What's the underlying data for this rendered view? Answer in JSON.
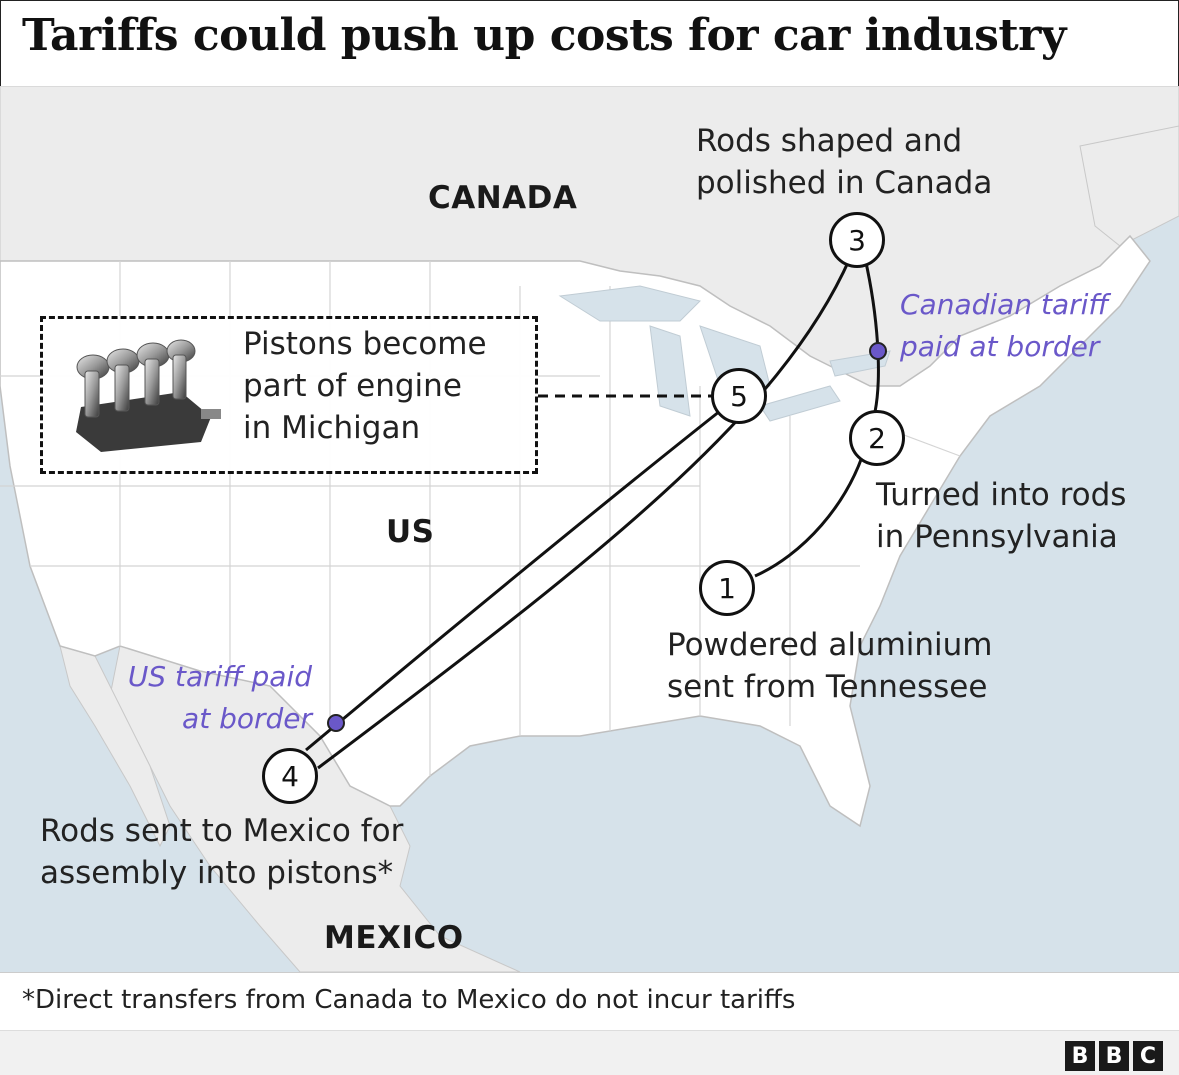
{
  "title": "Tariffs could push up costs for car industry",
  "countries": {
    "canada": "CANADA",
    "us": "US",
    "mexico": "MEXICO"
  },
  "steps": [
    {
      "num": "1",
      "label_line1": "Powdered aluminium",
      "label_line2": "sent from Tennessee"
    },
    {
      "num": "2",
      "label_line1": "Turned into rods",
      "label_line2": "in Pennsylvania"
    },
    {
      "num": "3",
      "label_line1": "Rods shaped and",
      "label_line2": "polished in Canada"
    },
    {
      "num": "4",
      "label_line1": "Rods sent to Mexico for",
      "label_line2": "assembly into pistons*"
    },
    {
      "num": "5",
      "label_line1": "Pistons become",
      "label_line2": "part of engine",
      "label_line3": "in Michigan"
    }
  ],
  "tariffs": {
    "canadian_line1": "Canadian tariff",
    "canadian_line2": "paid at border",
    "us_line1": "US tariff paid",
    "us_line2": "at border"
  },
  "footnote": "*Direct transfers from Canada to Mexico do not incur tariffs",
  "logo": [
    "B",
    "B",
    "C"
  ],
  "colors": {
    "land_us": "#ffffff",
    "land_other": "#ececec",
    "water": "#d6e2ea",
    "route": "#111111",
    "tariff_marker": "#6a58c9"
  },
  "icons": {
    "engine": "engine-pistons-icon"
  }
}
